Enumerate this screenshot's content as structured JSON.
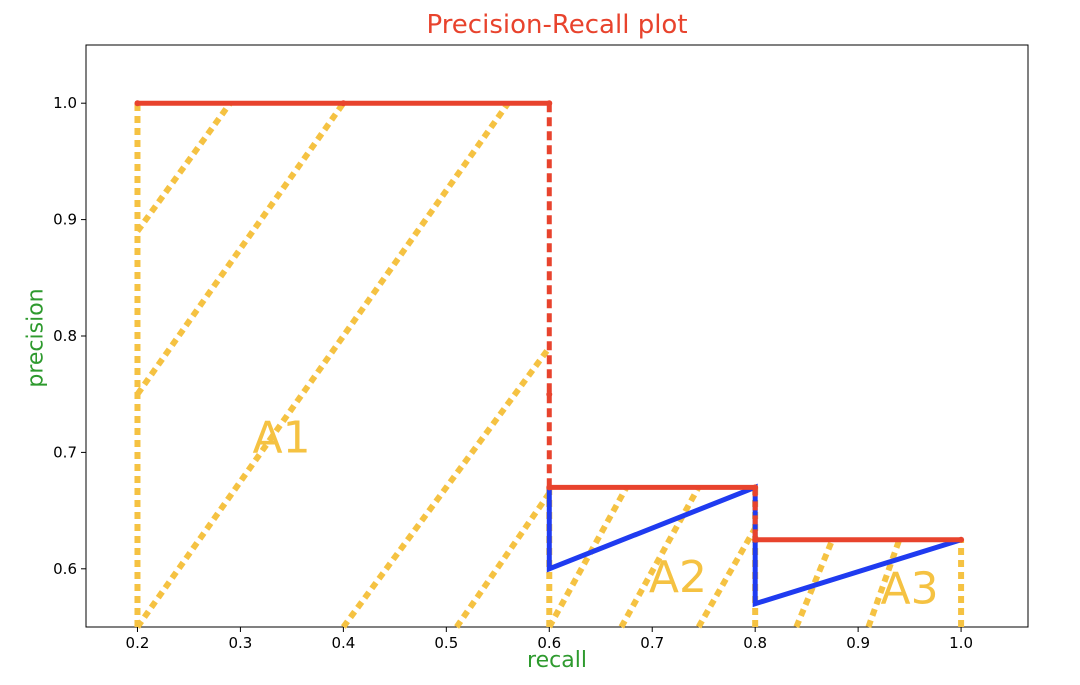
{
  "chart_data": {
    "type": "line",
    "title": "Precision-Recall plot",
    "xlabel": "recall",
    "ylabel": "precision",
    "xlim": [
      0.15,
      1.065
    ],
    "ylim": [
      0.55,
      1.05
    ],
    "xticks": [
      0.2,
      0.3,
      0.4,
      0.5,
      0.6,
      0.7,
      0.8,
      0.9,
      1.0
    ],
    "xtick_labels": [
      "0.2",
      "0.3",
      "0.4",
      "0.5",
      "0.6",
      "0.7",
      "0.8",
      "0.9",
      "1.0"
    ],
    "yticks": [
      0.6,
      0.7,
      0.8,
      0.9,
      1.0
    ],
    "ytick_labels": [
      "0.6",
      "0.7",
      "0.8",
      "0.9",
      "1.0"
    ],
    "grid": false,
    "series": [
      {
        "role": "interpolated precision",
        "style": "solid",
        "color": "#e8432d",
        "x": [
          0.2,
          0.4,
          0.6,
          0.6,
          0.6,
          0.8,
          0.8,
          1.0
        ],
        "y": [
          1.0,
          1.0,
          1.0,
          0.75,
          0.67,
          0.67,
          0.625,
          0.625
        ]
      },
      {
        "role": "raw precision",
        "style": "solid",
        "color": "#1f3bf0",
        "x": [
          0.6,
          0.6,
          0.8,
          0.8,
          0.8,
          1.0
        ],
        "y": [
          0.67,
          0.6,
          0.67,
          0.625,
          0.57,
          0.625
        ]
      }
    ],
    "area_hatch": [
      {
        "x": [
          0.2,
          0.29
        ],
        "y": [
          0.89,
          1.0
        ]
      },
      {
        "x": [
          0.2,
          0.4
        ],
        "y": [
          0.75,
          1.0
        ]
      },
      {
        "x": [
          0.2,
          0.56
        ],
        "y": [
          0.55,
          1.0
        ]
      },
      {
        "x": [
          0.4,
          0.6
        ],
        "y": [
          0.55,
          0.79
        ]
      },
      {
        "x": [
          0.51,
          0.6
        ],
        "y": [
          0.55,
          0.665
        ]
      },
      {
        "x": [
          0.6,
          0.675
        ],
        "y": [
          0.55,
          0.67
        ]
      },
      {
        "x": [
          0.67,
          0.745
        ],
        "y": [
          0.55,
          0.67
        ]
      },
      {
        "x": [
          0.745,
          0.8
        ],
        "y": [
          0.55,
          0.635
        ]
      },
      {
        "x": [
          0.84,
          0.875
        ],
        "y": [
          0.55,
          0.625
        ]
      },
      {
        "x": [
          0.91,
          0.94
        ],
        "y": [
          0.55,
          0.625
        ]
      }
    ],
    "area_bounds": [
      {
        "x": [
          0.2,
          0.2
        ],
        "y": [
          0.55,
          1.0
        ]
      },
      {
        "x": [
          0.6,
          0.6
        ],
        "y": [
          0.55,
          0.67
        ]
      },
      {
        "x": [
          0.8,
          0.8
        ],
        "y": [
          0.55,
          0.67
        ]
      },
      {
        "x": [
          1.0,
          1.0
        ],
        "y": [
          0.55,
          0.625
        ]
      }
    ],
    "annotations": [
      {
        "text": "A1",
        "x": 0.34,
        "y": 0.7
      },
      {
        "text": "A2",
        "x": 0.725,
        "y": 0.58
      },
      {
        "text": "A3",
        "x": 0.95,
        "y": 0.57
      }
    ],
    "colors": {
      "title": "#e8432d",
      "axis_labels": "#2e9a2e",
      "interp": "#e8432d",
      "raw": "#1f3bf0",
      "area": "#f5c242",
      "annotation": "#f5c242",
      "axes": "#000000"
    }
  }
}
